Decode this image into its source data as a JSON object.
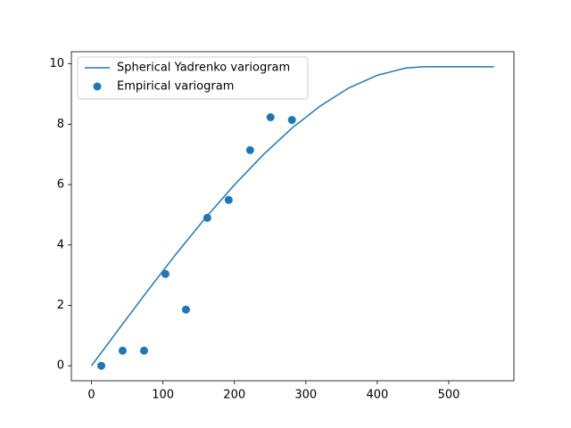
{
  "chart_data": {
    "type": "line_scatter",
    "series": [
      {
        "name": "Spherical Yadrenko variogram",
        "kind": "line",
        "color": "#1f77b4",
        "x": [
          0,
          40,
          80,
          120,
          160,
          200,
          240,
          280,
          320,
          360,
          400,
          440,
          465,
          563
        ],
        "values": [
          0,
          1.27,
          2.53,
          3.75,
          4.91,
          5.99,
          6.98,
          7.86,
          8.6,
          9.2,
          9.62,
          9.86,
          9.9,
          9.9
        ]
      },
      {
        "name": "Empirical variogram",
        "kind": "scatter",
        "color": "#1f77b4",
        "x": [
          13.7,
          43.6,
          73.6,
          103.5,
          132.2,
          162.1,
          192,
          222,
          250.6,
          280.5
        ],
        "values": [
          0,
          0.5,
          0.5,
          3.04,
          1.86,
          4.9,
          5.49,
          7.14,
          8.23,
          8.14
        ]
      }
    ],
    "xlim": [
      -28.15,
      591.15
    ],
    "xticks": [
      0,
      100,
      200,
      300,
      400,
      500
    ],
    "ylim": [
      -0.495,
      10.4
    ],
    "yticks": [
      0,
      2,
      4,
      6,
      8,
      10
    ],
    "legend": "upper left"
  }
}
